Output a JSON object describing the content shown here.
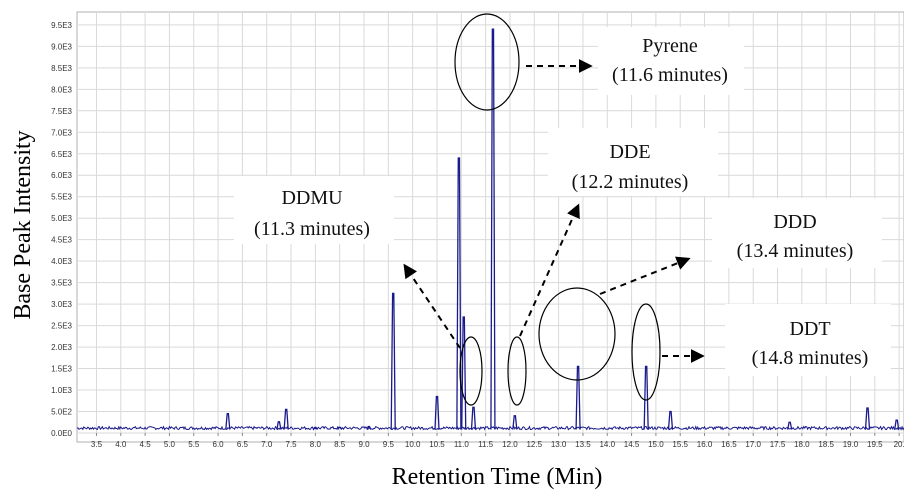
{
  "chart_data": {
    "type": "line",
    "xlabel": "Retention Time (Min)",
    "ylabel": "Base Peak Intensity",
    "xlim": [
      3.1,
      20.1
    ],
    "ylim": [
      0,
      9800
    ],
    "x_ticks": [
      "3.5",
      "4.0",
      "4.5",
      "5.0",
      "5.5",
      "6.0",
      "6.5",
      "7.0",
      "7.5",
      "8.0",
      "8.5",
      "9.0",
      "9.5",
      "10.0",
      "10.5",
      "11.0",
      "11.5",
      "12.0",
      "12.5",
      "13.0",
      "13.5",
      "14.0",
      "14.5",
      "15.0",
      "15.5",
      "16.0",
      "16.5",
      "17.0",
      "17.5",
      "18.0",
      "18.5",
      "19.0",
      "19.5",
      "20."
    ],
    "y_ticks": [
      "0.0E0",
      "5.0E2",
      "1.0E3",
      "1.5E3",
      "2.0E3",
      "2.5E3",
      "3.0E3",
      "3.5E3",
      "4.0E3",
      "4.5E3",
      "5.0E3",
      "5.5E3",
      "6.0E3",
      "6.5E3",
      "7.0E3",
      "7.5E3",
      "8.0E3",
      "8.5E3",
      "9.0E3",
      "9.5E3"
    ],
    "grid": true,
    "baseline": 80,
    "peaks": [
      {
        "x": 6.2,
        "y": 450
      },
      {
        "x": 7.25,
        "y": 260
      },
      {
        "x": 7.4,
        "y": 550
      },
      {
        "x": 8.0,
        "y": 130
      },
      {
        "x": 8.5,
        "y": 130
      },
      {
        "x": 9.1,
        "y": 150
      },
      {
        "x": 9.6,
        "y": 3250
      },
      {
        "x": 10.5,
        "y": 850
      },
      {
        "x": 10.95,
        "y": 6400
      },
      {
        "x": 11.05,
        "y": 2700
      },
      {
        "x": 11.25,
        "y": 600
      },
      {
        "x": 11.65,
        "y": 9400
      },
      {
        "x": 12.1,
        "y": 400
      },
      {
        "x": 13.4,
        "y": 1550
      },
      {
        "x": 14.8,
        "y": 1550
      },
      {
        "x": 15.3,
        "y": 500
      },
      {
        "x": 17.75,
        "y": 250
      },
      {
        "x": 19.35,
        "y": 580
      },
      {
        "x": 19.95,
        "y": 300
      }
    ],
    "annotations": [
      {
        "name": "Pyrene",
        "time": "(11.6 minutes)"
      },
      {
        "name": "DDE",
        "time": "(12.2 minutes)"
      },
      {
        "name": "DDMU",
        "time": "(11.3 minutes)"
      },
      {
        "name": "DDD",
        "time": "(13.4 minutes)"
      },
      {
        "name": "DDT",
        "time": "(14.8 minutes)"
      }
    ],
    "colors": {
      "trace": "#1a1a8c",
      "grid": "#d9d9d9",
      "axis": "#888888",
      "annotation": "#000000"
    }
  }
}
